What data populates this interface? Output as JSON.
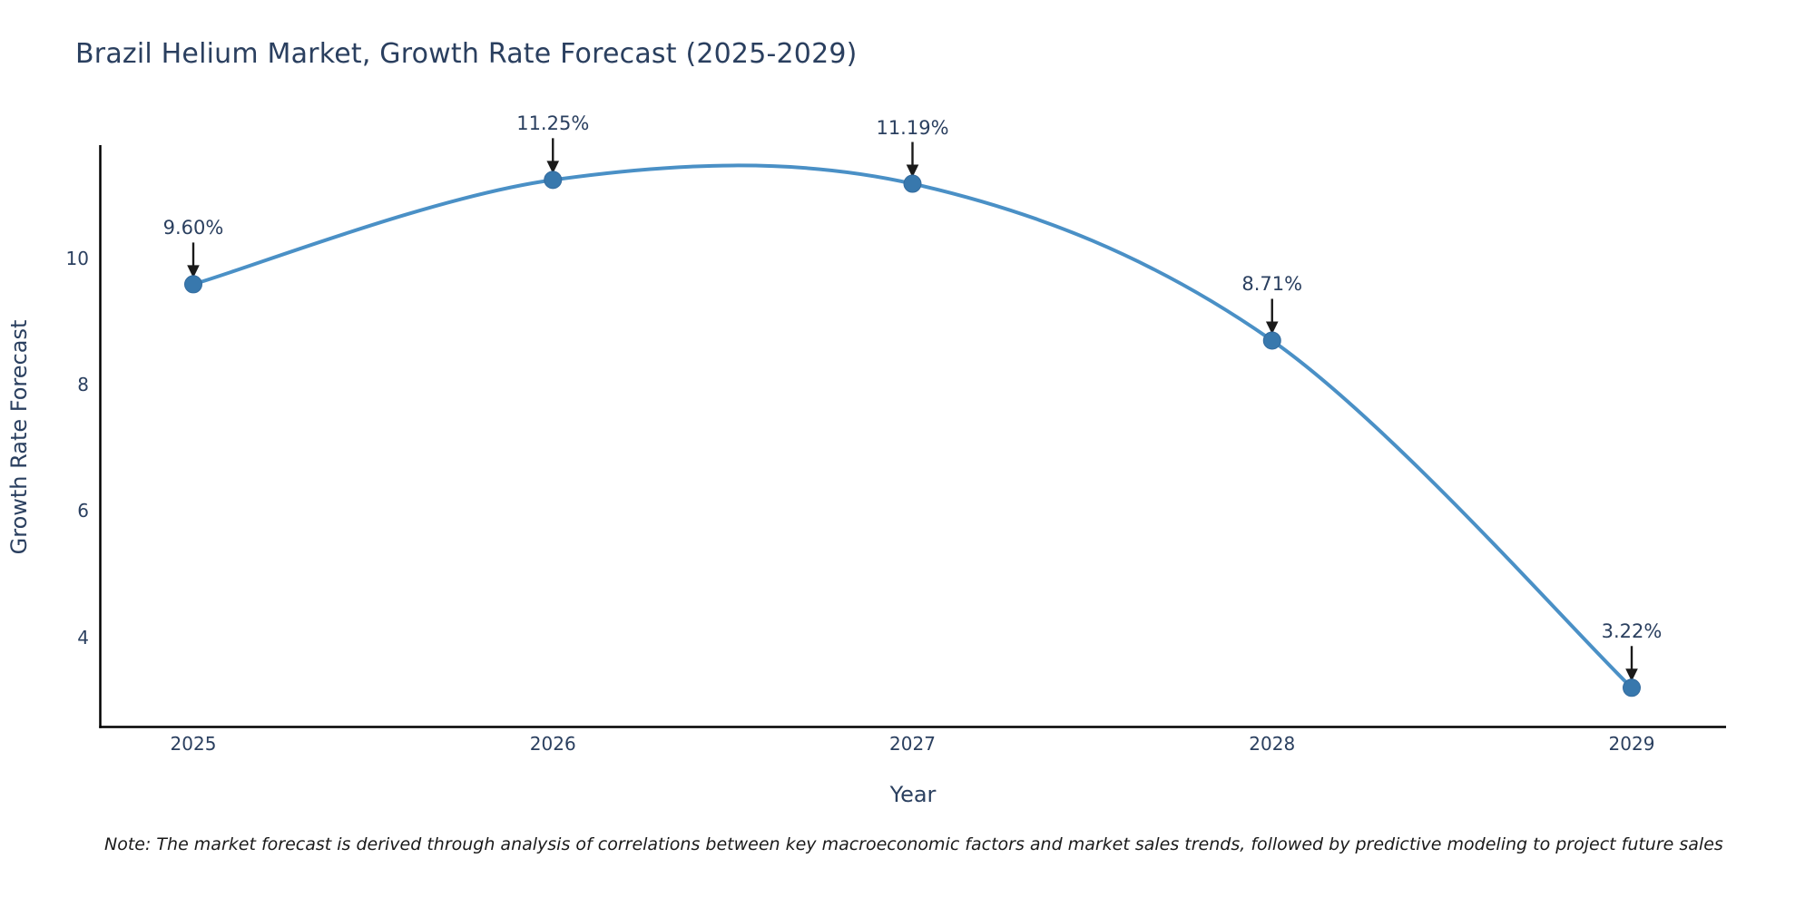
{
  "chart_data": {
    "type": "line",
    "curve": "spline",
    "title": "Brazil Helium Market, Growth Rate Forecast (2025-2029)",
    "xlabel": "Year",
    "ylabel": "Growth Rate Forecast",
    "categories": [
      "2025",
      "2026",
      "2027",
      "2028",
      "2029"
    ],
    "values": [
      9.6,
      11.25,
      11.19,
      8.71,
      3.22
    ],
    "point_labels": [
      "9.60%",
      "11.25%",
      "11.19%",
      "8.71%",
      "3.22%"
    ],
    "yticks": [
      10,
      8,
      6,
      4
    ],
    "ylim": [
      2.6,
      11.8
    ],
    "grid": false,
    "legend_position": "none",
    "colors": {
      "line": "#4a90c6",
      "marker": "#3878ad",
      "marker_stroke": "#336b9e",
      "arrow": "#1a1a1a",
      "axis": "#000000",
      "text": "#2a3f5f"
    }
  },
  "note": "Note: The market forecast is derived through analysis of correlations between key macroeconomic factors and market sales trends, followed by predictive modeling to project future sales"
}
